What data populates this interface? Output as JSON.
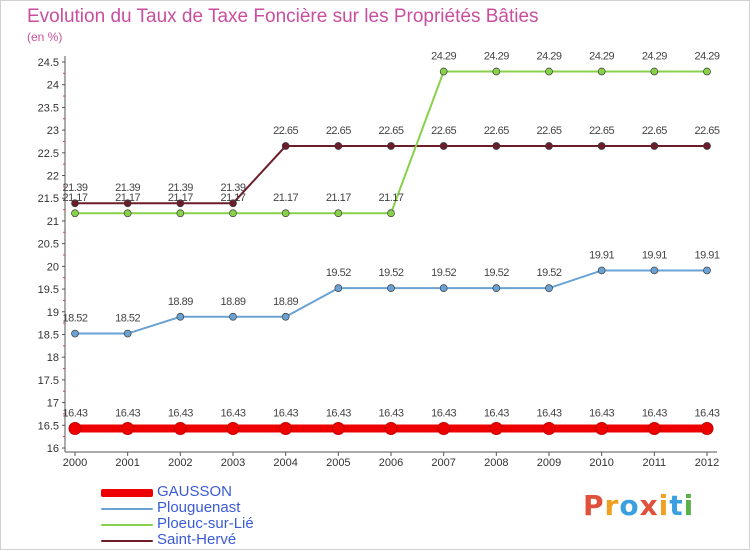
{
  "title": "Evolution du Taux de Taxe Foncière sur les Propriétés Bâties",
  "unit": "(en %)",
  "logo": {
    "text": "Proxiti",
    "colors": [
      "#e0503a",
      "#f0a020",
      "#3aa0e0",
      "#e0503a",
      "#f0a020",
      "#3aa0e0",
      "#5ab04a"
    ]
  },
  "chart_data": {
    "type": "line",
    "title": "Evolution du Taux de Taxe Foncière sur les Propriétés Bâties",
    "ylabel": "(en %)",
    "xlabel": "",
    "x": [
      "2000",
      "2001",
      "2002",
      "2003",
      "2004",
      "2005",
      "2006",
      "2007",
      "2008",
      "2009",
      "2010",
      "2011",
      "2012"
    ],
    "ylim": [
      16,
      24.5
    ],
    "yticks": [
      "16",
      "16.5",
      "17",
      "17.5",
      "18",
      "18.5",
      "19",
      "19.5",
      "20",
      "20.5",
      "21",
      "21.5",
      "22",
      "22.5",
      "23",
      "23.5",
      "24",
      "24.5"
    ],
    "grid": false,
    "legend_position": "bottom-left",
    "series": [
      {
        "name": "Saint-Hervé",
        "color": "#6b1d2a",
        "values": [
          21.39,
          21.39,
          21.39,
          21.39,
          22.65,
          22.65,
          22.65,
          22.65,
          22.65,
          22.65,
          22.65,
          22.65,
          22.65
        ],
        "labels": [
          "21.39",
          "21.39",
          "21.39",
          "21.39",
          "22.65",
          "22.65",
          "22.65",
          "22.65",
          "22.65",
          "22.65",
          "22.65",
          "22.65",
          "22.65"
        ]
      },
      {
        "name": "Ploeuc-sur-Lié",
        "color": "#88d14a",
        "values": [
          21.17,
          21.17,
          21.17,
          21.17,
          21.17,
          21.17,
          21.17,
          24.29,
          24.29,
          24.29,
          24.29,
          24.29,
          24.29
        ],
        "labels": [
          "21.17",
          "21.17",
          "21.17",
          "21.17",
          "21.17",
          "21.17",
          "21.17",
          "24.29",
          "24.29",
          "24.29",
          "24.29",
          "24.29",
          "24.29"
        ]
      },
      {
        "name": "Plouguenast",
        "color": "#6aa2d4",
        "values": [
          18.52,
          18.52,
          18.89,
          18.89,
          18.89,
          19.52,
          19.52,
          19.52,
          19.52,
          19.52,
          19.91,
          19.91,
          19.91
        ],
        "labels": [
          "18.52",
          "18.52",
          "18.89",
          "18.89",
          "18.89",
          "19.52",
          "19.52",
          "19.52",
          "19.52",
          "19.52",
          "19.91",
          "19.91",
          "19.91"
        ]
      },
      {
        "name": "GAUSSON",
        "color": "#ee0000",
        "values": [
          16.43,
          16.43,
          16.43,
          16.43,
          16.43,
          16.43,
          16.43,
          16.43,
          16.43,
          16.43,
          16.43,
          16.43,
          16.43
        ],
        "labels": [
          "16.43",
          "16.43",
          "16.43",
          "16.43",
          "16.43",
          "16.43",
          "16.43",
          "16.43",
          "16.43",
          "16.43",
          "16.43",
          "16.43",
          "16.43"
        ]
      }
    ],
    "legend": [
      "GAUSSON",
      "Plouguenast",
      "Ploeuc-sur-Lié",
      "Saint-Hervé"
    ]
  }
}
